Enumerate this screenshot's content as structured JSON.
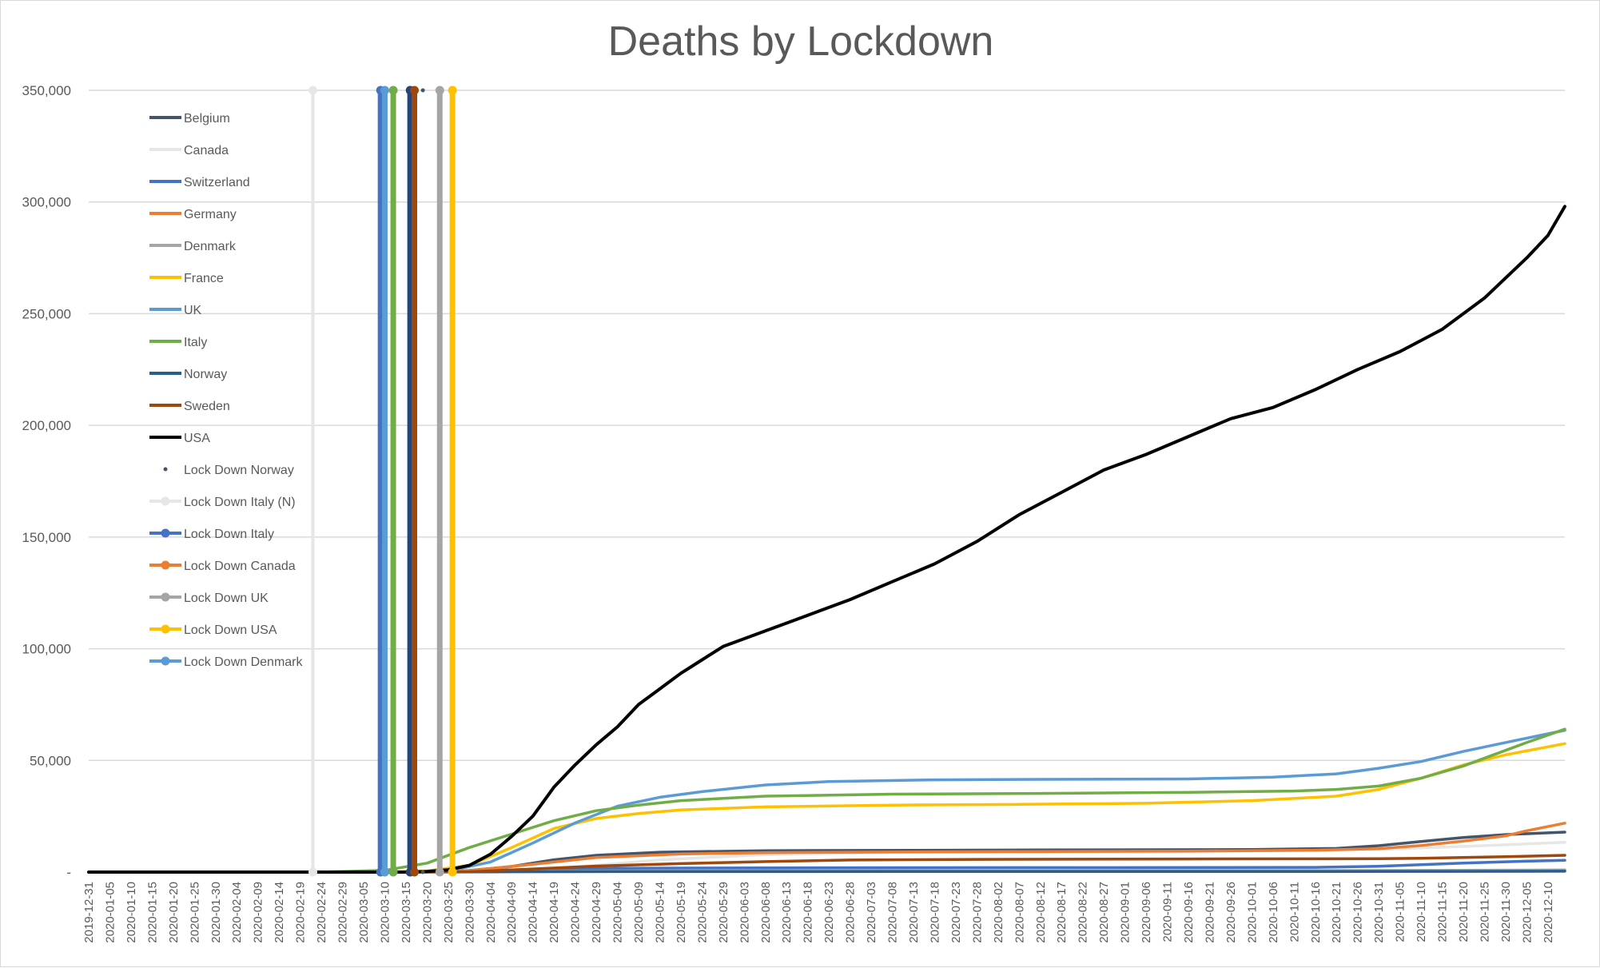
{
  "chart_data": {
    "type": "line",
    "title": "Deaths by Lockdown",
    "xlabel": "",
    "ylabel": "",
    "ylim": [
      0,
      350000
    ],
    "yticks": [
      0,
      50000,
      100000,
      150000,
      200000,
      250000,
      300000,
      350000
    ],
    "ytick_labels": [
      "-",
      "50,000",
      "100,000",
      "150,000",
      "200,000",
      "250,000",
      "300,000",
      "350,000"
    ],
    "x_start": "2019-12-31",
    "x_end": "2020-12-14",
    "xtick_labels": [
      "2019-12-31",
      "2020-01-05",
      "2020-01-10",
      "2020-01-15",
      "2020-01-20",
      "2020-01-25",
      "2020-01-30",
      "2020-02-04",
      "2020-02-09",
      "2020-02-14",
      "2020-02-19",
      "2020-02-24",
      "2020-02-29",
      "2020-03-05",
      "2020-03-10",
      "2020-03-15",
      "2020-03-20",
      "2020-03-25",
      "2020-03-30",
      "2020-04-04",
      "2020-04-09",
      "2020-04-14",
      "2020-04-19",
      "2020-04-24",
      "2020-04-29",
      "2020-05-04",
      "2020-05-09",
      "2020-05-14",
      "2020-05-19",
      "2020-05-24",
      "2020-05-29",
      "2020-06-03",
      "2020-06-08",
      "2020-06-13",
      "2020-06-18",
      "2020-06-23",
      "2020-06-28",
      "2020-07-03",
      "2020-07-08",
      "2020-07-13",
      "2020-07-18",
      "2020-07-23",
      "2020-07-28",
      "2020-08-02",
      "2020-08-07",
      "2020-08-12",
      "2020-08-17",
      "2020-08-22",
      "2020-08-27",
      "2020-09-01",
      "2020-09-06",
      "2020-09-11",
      "2020-09-16",
      "2020-09-21",
      "2020-09-26",
      "2020-10-01",
      "2020-10-06",
      "2020-10-11",
      "2020-10-16",
      "2020-10-21",
      "2020-10-26",
      "2020-10-31",
      "2020-11-05",
      "2020-11-10",
      "2020-11-15",
      "2020-11-20",
      "2020-11-25",
      "2020-11-30",
      "2020-12-05",
      "2020-12-10"
    ],
    "grid": true,
    "legend_position": "upper-left-inside",
    "series": [
      {
        "name": "Belgium",
        "color": "#44546a",
        "points": [
          [
            "2019-12-31",
            0
          ],
          [
            "2020-03-10",
            0
          ],
          [
            "2020-03-20",
            100
          ],
          [
            "2020-03-30",
            700
          ],
          [
            "2020-04-09",
            2500
          ],
          [
            "2020-04-19",
            5500
          ],
          [
            "2020-04-29",
            7500
          ],
          [
            "2020-05-14",
            8900
          ],
          [
            "2020-06-08",
            9600
          ],
          [
            "2020-08-12",
            9900
          ],
          [
            "2020-10-01",
            10100
          ],
          [
            "2020-10-21",
            10600
          ],
          [
            "2020-10-31",
            11800
          ],
          [
            "2020-11-10",
            13700
          ],
          [
            "2020-11-20",
            15500
          ],
          [
            "2020-11-30",
            16800
          ],
          [
            "2020-12-14",
            17900
          ]
        ]
      },
      {
        "name": "Canada",
        "color": "#e7e6e6",
        "points": [
          [
            "2019-12-31",
            0
          ],
          [
            "2020-03-15",
            0
          ],
          [
            "2020-03-30",
            100
          ],
          [
            "2020-04-14",
            900
          ],
          [
            "2020-04-29",
            3000
          ],
          [
            "2020-05-14",
            5500
          ],
          [
            "2020-06-08",
            7800
          ],
          [
            "2020-07-08",
            8800
          ],
          [
            "2020-09-16",
            9200
          ],
          [
            "2020-10-16",
            9700
          ],
          [
            "2020-11-05",
            10500
          ],
          [
            "2020-11-20",
            11500
          ],
          [
            "2020-12-05",
            12600
          ],
          [
            "2020-12-14",
            13300
          ]
        ]
      },
      {
        "name": "Switzerland",
        "color": "#4472c4",
        "points": [
          [
            "2019-12-31",
            0
          ],
          [
            "2020-03-10",
            0
          ],
          [
            "2020-03-25",
            200
          ],
          [
            "2020-04-14",
            1200
          ],
          [
            "2020-05-04",
            1700
          ],
          [
            "2020-06-08",
            1900
          ],
          [
            "2020-10-16",
            2100
          ],
          [
            "2020-10-31",
            2600
          ],
          [
            "2020-11-10",
            3300
          ],
          [
            "2020-11-20",
            4000
          ],
          [
            "2020-11-30",
            4600
          ],
          [
            "2020-12-14",
            5300
          ]
        ]
      },
      {
        "name": "Germany",
        "color": "#ed7d31",
        "points": [
          [
            "2019-12-31",
            0
          ],
          [
            "2020-03-15",
            0
          ],
          [
            "2020-03-30",
            600
          ],
          [
            "2020-04-14",
            3500
          ],
          [
            "2020-04-29",
            6500
          ],
          [
            "2020-05-19",
            8100
          ],
          [
            "2020-06-08",
            8700
          ],
          [
            "2020-07-18",
            9100
          ],
          [
            "2020-09-16",
            9400
          ],
          [
            "2020-10-16",
            9800
          ],
          [
            "2020-10-31",
            10500
          ],
          [
            "2020-11-10",
            11900
          ],
          [
            "2020-11-20",
            13900
          ],
          [
            "2020-11-30",
            16200
          ],
          [
            "2020-12-05",
            18500
          ],
          [
            "2020-12-14",
            21900
          ]
        ]
      },
      {
        "name": "Denmark",
        "color": "#a5a5a5",
        "points": [
          [
            "2019-12-31",
            0
          ],
          [
            "2020-03-15",
            0
          ],
          [
            "2020-04-04",
            200
          ],
          [
            "2020-04-29",
            450
          ],
          [
            "2020-06-08",
            600
          ],
          [
            "2020-10-16",
            680
          ],
          [
            "2020-11-10",
            760
          ],
          [
            "2020-12-05",
            880
          ],
          [
            "2020-12-14",
            950
          ]
        ]
      },
      {
        "name": "France",
        "color": "#ffc000",
        "points": [
          [
            "2019-12-31",
            0
          ],
          [
            "2020-03-10",
            0
          ],
          [
            "2020-03-20",
            500
          ],
          [
            "2020-03-30",
            3000
          ],
          [
            "2020-04-09",
            11000
          ],
          [
            "2020-04-19",
            19500
          ],
          [
            "2020-04-29",
            24000
          ],
          [
            "2020-05-09",
            26200
          ],
          [
            "2020-05-19",
            27800
          ],
          [
            "2020-06-08",
            29200
          ],
          [
            "2020-07-08",
            30000
          ],
          [
            "2020-08-07",
            30300
          ],
          [
            "2020-09-06",
            30800
          ],
          [
            "2020-10-01",
            32000
          ],
          [
            "2020-10-21",
            34000
          ],
          [
            "2020-10-31",
            37000
          ],
          [
            "2020-11-10",
            42000
          ],
          [
            "2020-11-20",
            48000
          ],
          [
            "2020-11-30",
            52500
          ],
          [
            "2020-12-14",
            57500
          ]
        ]
      },
      {
        "name": "UK",
        "color": "#5b9bd5",
        "points": [
          [
            "2019-12-31",
            0
          ],
          [
            "2020-03-15",
            0
          ],
          [
            "2020-03-25",
            500
          ],
          [
            "2020-04-04",
            4500
          ],
          [
            "2020-04-14",
            13000
          ],
          [
            "2020-04-24",
            22000
          ],
          [
            "2020-05-04",
            29500
          ],
          [
            "2020-05-14",
            33500
          ],
          [
            "2020-05-24",
            36000
          ],
          [
            "2020-06-08",
            39000
          ],
          [
            "2020-06-23",
            40500
          ],
          [
            "2020-07-18",
            41300
          ],
          [
            "2020-08-12",
            41500
          ],
          [
            "2020-09-16",
            41700
          ],
          [
            "2020-10-06",
            42500
          ],
          [
            "2020-10-21",
            44000
          ],
          [
            "2020-10-31",
            46500
          ],
          [
            "2020-11-10",
            49500
          ],
          [
            "2020-11-20",
            54000
          ],
          [
            "2020-11-30",
            58000
          ],
          [
            "2020-12-14",
            63500
          ]
        ]
      },
      {
        "name": "Italy",
        "color": "#70ad47",
        "points": [
          [
            "2019-12-31",
            0
          ],
          [
            "2020-02-24",
            0
          ],
          [
            "2020-03-10",
            800
          ],
          [
            "2020-03-20",
            4000
          ],
          [
            "2020-03-30",
            11000
          ],
          [
            "2020-04-09",
            17000
          ],
          [
            "2020-04-19",
            23000
          ],
          [
            "2020-04-29",
            27500
          ],
          [
            "2020-05-09",
            30000
          ],
          [
            "2020-05-19",
            32000
          ],
          [
            "2020-06-08",
            34000
          ],
          [
            "2020-07-08",
            34900
          ],
          [
            "2020-08-12",
            35200
          ],
          [
            "2020-09-16",
            35700
          ],
          [
            "2020-10-11",
            36300
          ],
          [
            "2020-10-21",
            37000
          ],
          [
            "2020-10-31",
            38500
          ],
          [
            "2020-11-10",
            42000
          ],
          [
            "2020-11-20",
            47500
          ],
          [
            "2020-11-30",
            54500
          ],
          [
            "2020-12-05",
            58000
          ],
          [
            "2020-12-14",
            64000
          ]
        ]
      },
      {
        "name": "Norway",
        "color": "#255e91",
        "points": [
          [
            "2019-12-31",
            0
          ],
          [
            "2020-03-15",
            0
          ],
          [
            "2020-04-04",
            100
          ],
          [
            "2020-05-04",
            210
          ],
          [
            "2020-07-08",
            250
          ],
          [
            "2020-10-16",
            280
          ],
          [
            "2020-11-15",
            320
          ],
          [
            "2020-12-14",
            390
          ]
        ]
      },
      {
        "name": "Sweden",
        "color": "#9e480e",
        "points": [
          [
            "2019-12-31",
            0
          ],
          [
            "2020-03-15",
            0
          ],
          [
            "2020-03-30",
            150
          ],
          [
            "2020-04-14",
            1400
          ],
          [
            "2020-04-29",
            2700
          ],
          [
            "2020-05-19",
            3800
          ],
          [
            "2020-06-08",
            4700
          ],
          [
            "2020-06-28",
            5400
          ],
          [
            "2020-07-28",
            5700
          ],
          [
            "2020-09-16",
            5860
          ],
          [
            "2020-10-16",
            5950
          ],
          [
            "2020-10-31",
            6000
          ],
          [
            "2020-11-10",
            6200
          ],
          [
            "2020-11-20",
            6500
          ],
          [
            "2020-11-30",
            6900
          ],
          [
            "2020-12-14",
            7500
          ]
        ]
      },
      {
        "name": "USA",
        "color": "#000000",
        "points": [
          [
            "2019-12-31",
            0
          ],
          [
            "2020-03-15",
            0
          ],
          [
            "2020-03-20",
            300
          ],
          [
            "2020-03-25",
            1000
          ],
          [
            "2020-03-30",
            3000
          ],
          [
            "2020-04-04",
            8000
          ],
          [
            "2020-04-09",
            16000
          ],
          [
            "2020-04-14",
            25000
          ],
          [
            "2020-04-19",
            38000
          ],
          [
            "2020-04-24",
            48000
          ],
          [
            "2020-04-29",
            57000
          ],
          [
            "2020-05-04",
            65000
          ],
          [
            "2020-05-09",
            75000
          ],
          [
            "2020-05-14",
            82000
          ],
          [
            "2020-05-19",
            89000
          ],
          [
            "2020-05-24",
            95000
          ],
          [
            "2020-05-29",
            101000
          ],
          [
            "2020-06-08",
            108000
          ],
          [
            "2020-06-18",
            115000
          ],
          [
            "2020-06-28",
            122000
          ],
          [
            "2020-07-08",
            130000
          ],
          [
            "2020-07-18",
            138000
          ],
          [
            "2020-07-28",
            148000
          ],
          [
            "2020-08-07",
            160000
          ],
          [
            "2020-08-17",
            170000
          ],
          [
            "2020-08-27",
            180000
          ],
          [
            "2020-09-06",
            187000
          ],
          [
            "2020-09-16",
            195000
          ],
          [
            "2020-09-26",
            203000
          ],
          [
            "2020-10-06",
            208000
          ],
          [
            "2020-10-16",
            216000
          ],
          [
            "2020-10-26",
            225000
          ],
          [
            "2020-11-05",
            233000
          ],
          [
            "2020-11-15",
            243000
          ],
          [
            "2020-11-25",
            257000
          ],
          [
            "2020-12-05",
            275000
          ],
          [
            "2020-12-10",
            285000
          ],
          [
            "2020-12-14",
            298000
          ]
        ]
      }
    ],
    "markers": [
      {
        "name": "Lock Down Norway",
        "date": "2020-03-19",
        "line": false,
        "color": "#44546a",
        "dotted_ends": true
      },
      {
        "name": "Lock Down Italy (N)",
        "date": "2020-02-22",
        "line": true,
        "color": "#e7e6e6"
      },
      {
        "name": "Lock Down Italy",
        "date": "2020-03-09",
        "line": true,
        "color": "#4472c4"
      },
      {
        "name": "Lock Down Canada",
        "date": "2020-03-16",
        "line": true,
        "color": "#ed7d31"
      },
      {
        "name": "Lock Down UK",
        "date": "2020-03-23",
        "line": true,
        "color": "#a5a5a5"
      },
      {
        "name": "Lock Down USA",
        "date": "2020-03-26",
        "line": true,
        "color": "#ffc000"
      },
      {
        "name": "Lock Down Denmark",
        "date": "2020-03-10",
        "line": true,
        "color": "#5b9bd5"
      },
      {
        "name": "",
        "date": "2020-03-12",
        "line": true,
        "color": "#70ad47"
      },
      {
        "name": "",
        "date": "2020-03-16",
        "line": true,
        "color": "#264478"
      },
      {
        "name": "",
        "date": "2020-03-17",
        "line": true,
        "color": "#9e480e"
      }
    ]
  }
}
